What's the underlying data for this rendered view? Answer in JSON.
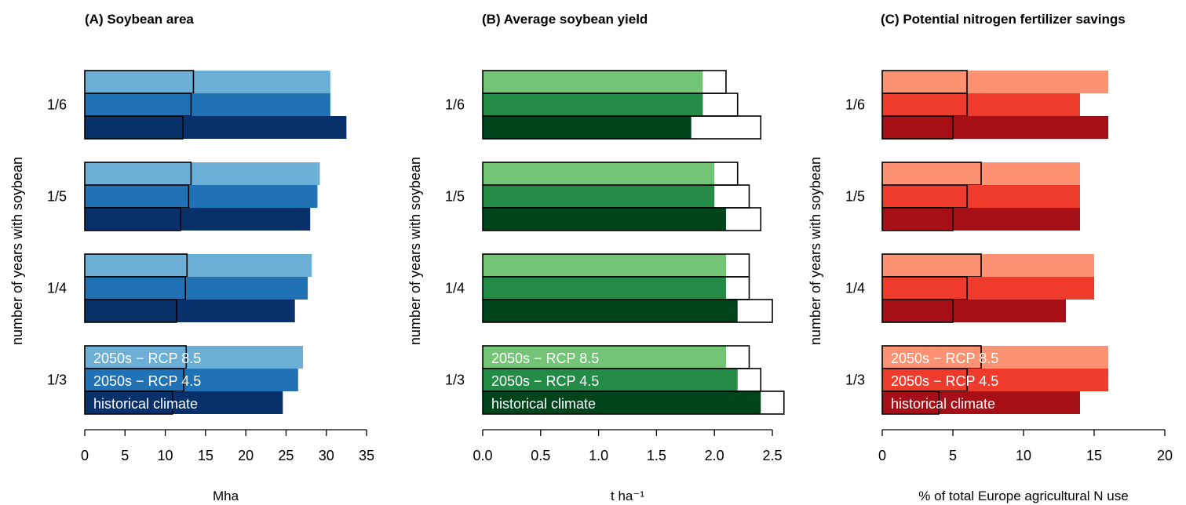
{
  "y_axis_label": "number of years with soybean",
  "categories": [
    "1/6",
    "1/5",
    "1/4",
    "1/3"
  ],
  "legend": [
    "2050s − RCP 8.5",
    "2050s − RCP 4.5",
    "historical climate"
  ],
  "chart_data": [
    {
      "type": "bar",
      "title": "(A) Soybean area",
      "xlabel": "Mha",
      "xlim": [
        0,
        35
      ],
      "ticks": [
        0,
        5,
        10,
        15,
        20,
        25,
        30,
        35
      ],
      "tick_labels": [
        "0",
        "5",
        "10",
        "15",
        "20",
        "25",
        "30",
        "35"
      ],
      "colors": [
        "#6baed6",
        "#2171b5",
        "#08306b"
      ],
      "series": [
        {
          "name": "2050s − RCP 8.5",
          "values": [
            30.5,
            29.2,
            28.2,
            27.1
          ],
          "outlined": [
            13.5,
            13.2,
            12.7,
            12.6
          ]
        },
        {
          "name": "2050s − RCP 4.5",
          "values": [
            30.5,
            28.9,
            27.7,
            26.5
          ],
          "outlined": [
            13.2,
            12.9,
            12.5,
            12.3
          ]
        },
        {
          "name": "historical climate",
          "values": [
            32.5,
            28.0,
            26.1,
            24.6
          ],
          "outlined": [
            12.2,
            11.9,
            11.4,
            10.9
          ]
        }
      ]
    },
    {
      "type": "bar",
      "title": "(B) Average soybean yield",
      "xlabel": "t ha⁻¹",
      "xlim": [
        0,
        2.5
      ],
      "ticks": [
        0,
        0.5,
        1.0,
        1.5,
        2.0,
        2.5
      ],
      "tick_labels": [
        "0.0",
        "0.5",
        "1.0",
        "1.5",
        "2.0",
        "2.5"
      ],
      "colors": [
        "#74c476",
        "#238b45",
        "#00441b"
      ],
      "series": [
        {
          "name": "2050s − RCP 8.5",
          "values": [
            1.9,
            2.0,
            2.1,
            2.1
          ],
          "outlined": [
            2.1,
            2.2,
            2.3,
            2.3
          ]
        },
        {
          "name": "2050s − RCP 4.5",
          "values": [
            1.9,
            2.0,
            2.1,
            2.2
          ],
          "outlined": [
            2.2,
            2.3,
            2.3,
            2.4
          ]
        },
        {
          "name": "historical climate",
          "values": [
            1.8,
            2.1,
            2.2,
            2.4
          ],
          "outlined": [
            2.4,
            2.4,
            2.5,
            2.6
          ]
        }
      ]
    },
    {
      "type": "bar",
      "title": "(C) Potential nitrogen fertilizer savings",
      "xlabel": "% of total Europe agricultural N use",
      "xlim": [
        0,
        20
      ],
      "ticks": [
        0,
        5,
        10,
        15,
        20
      ],
      "tick_labels": [
        "0",
        "5",
        "10",
        "15",
        "20"
      ],
      "colors": [
        "#fc9272",
        "#ef3b2c",
        "#a50f15"
      ],
      "series": [
        {
          "name": "2050s − RCP 8.5",
          "values": [
            16,
            14,
            15,
            16
          ],
          "outlined": [
            6,
            7,
            7,
            7
          ]
        },
        {
          "name": "2050s − RCP 4.5",
          "values": [
            14,
            14,
            15,
            16
          ],
          "outlined": [
            6,
            6,
            6,
            6
          ]
        },
        {
          "name": "historical climate",
          "values": [
            16,
            14,
            13,
            14
          ],
          "outlined": [
            5,
            5,
            5,
            4
          ]
        }
      ]
    }
  ]
}
